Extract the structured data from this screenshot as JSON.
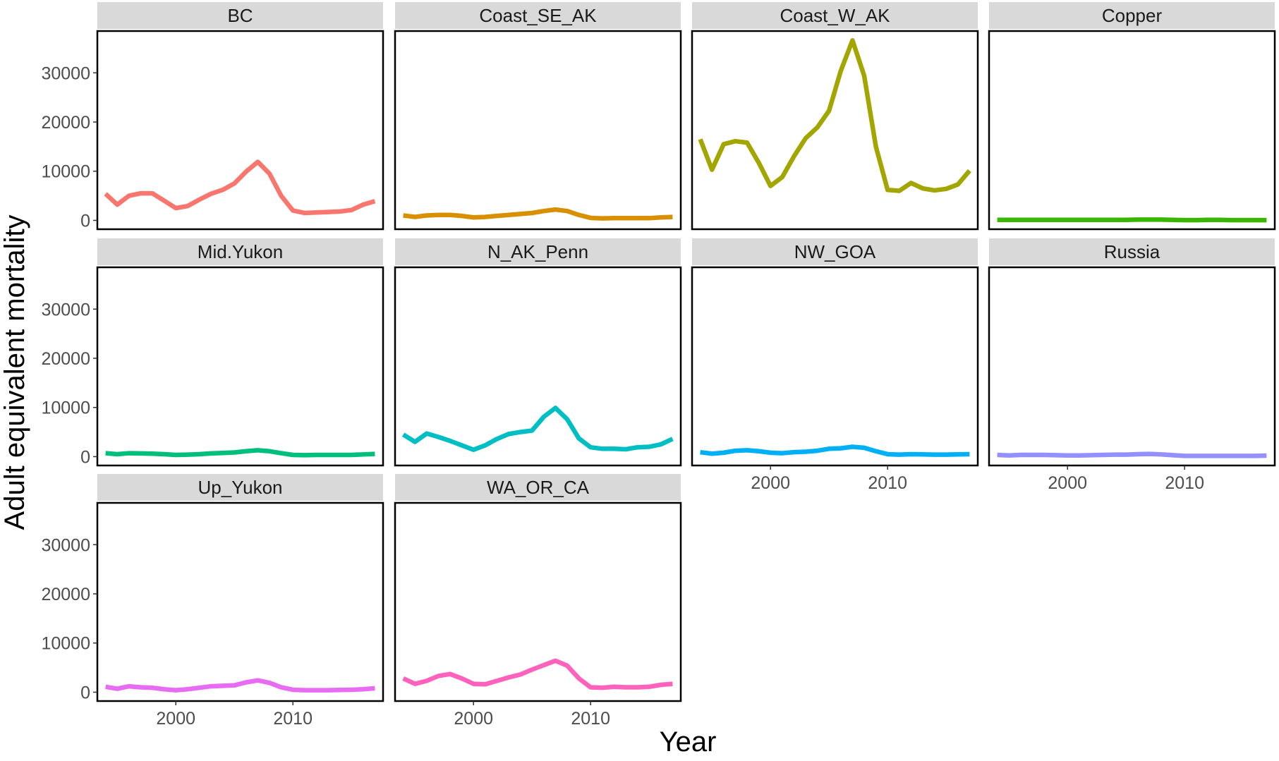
{
  "chart_data": {
    "type": "line",
    "xlabel": "Year",
    "ylabel": "Adult equivalent mortality",
    "xlim": [
      1993.3,
      2017.7
    ],
    "ylim": [
      -1800,
      38500
    ],
    "x_ticks": [
      2000,
      2010
    ],
    "y_ticks": [
      0,
      10000,
      20000,
      30000
    ],
    "x_tick_labels": [
      "2000",
      "2010"
    ],
    "y_tick_labels": [
      "0",
      "10000",
      "20000",
      "30000"
    ],
    "facet_layout": {
      "columns": 4,
      "rows": 3
    },
    "grid": false,
    "legend": "none",
    "x": [
      1994,
      1995,
      1996,
      1997,
      1998,
      1999,
      2000,
      2001,
      2002,
      2003,
      2004,
      2005,
      2006,
      2007,
      2008,
      2009,
      2010,
      2011,
      2012,
      2013,
      2014,
      2015,
      2016,
      2017
    ],
    "panels": [
      {
        "label": "BC",
        "color": "#F8766D",
        "values": [
          5400,
          3200,
          5000,
          5500,
          5500,
          4000,
          2500,
          2900,
          4200,
          5400,
          6200,
          7500,
          9900,
          11900,
          9500,
          5000,
          2000,
          1500,
          1600,
          1700,
          1800,
          2100,
          3200,
          3900
        ]
      },
      {
        "label": "Coast_SE_AK",
        "color": "#D89000",
        "values": [
          1000,
          700,
          1000,
          1100,
          1100,
          900,
          600,
          700,
          900,
          1100,
          1300,
          1500,
          1900,
          2200,
          1900,
          1100,
          500,
          400,
          450,
          450,
          450,
          450,
          600,
          700
        ]
      },
      {
        "label": "Coast_W_AK",
        "color": "#A3A500",
        "values": [
          16500,
          10300,
          15500,
          16100,
          15800,
          11700,
          7000,
          8800,
          13000,
          16700,
          18900,
          22300,
          30400,
          36600,
          29400,
          15000,
          6200,
          6000,
          7600,
          6500,
          6100,
          6400,
          7300,
          10100
        ]
      },
      {
        "label": "Copper",
        "color": "#39B600",
        "values": [
          100,
          100,
          100,
          100,
          100,
          100,
          100,
          100,
          100,
          100,
          100,
          100,
          150,
          150,
          150,
          100,
          50,
          50,
          100,
          100,
          50,
          50,
          50,
          50
        ]
      },
      {
        "label": "Mid.Yukon",
        "color": "#00BF7D",
        "values": [
          700,
          500,
          700,
          650,
          600,
          500,
          350,
          400,
          500,
          650,
          750,
          850,
          1100,
          1300,
          1100,
          700,
          350,
          300,
          350,
          350,
          350,
          350,
          450,
          550
        ]
      },
      {
        "label": "N_AK_Penn",
        "color": "#00BFC4",
        "values": [
          4500,
          3000,
          4700,
          4000,
          3200,
          2300,
          1400,
          2300,
          3600,
          4600,
          5000,
          5300,
          8100,
          9900,
          7600,
          3700,
          1900,
          1600,
          1600,
          1500,
          1900,
          2000,
          2500,
          3600
        ]
      },
      {
        "label": "NW_GOA",
        "color": "#00B0F6",
        "values": [
          900,
          600,
          800,
          1200,
          1300,
          1100,
          800,
          700,
          900,
          1000,
          1200,
          1600,
          1700,
          2000,
          1800,
          1100,
          500,
          400,
          500,
          450,
          400,
          400,
          450,
          500
        ]
      },
      {
        "label": "Russia",
        "color": "#9590FF",
        "values": [
          350,
          250,
          350,
          350,
          350,
          300,
          250,
          250,
          300,
          350,
          400,
          400,
          500,
          550,
          450,
          300,
          150,
          150,
          150,
          150,
          150,
          150,
          150,
          200
        ]
      },
      {
        "label": "Up_Yukon",
        "color": "#E76BF3",
        "values": [
          1100,
          700,
          1200,
          1000,
          900,
          600,
          400,
          600,
          900,
          1200,
          1300,
          1400,
          2000,
          2400,
          1900,
          1000,
          500,
          400,
          400,
          400,
          450,
          500,
          600,
          800
        ]
      },
      {
        "label": "WA_OR_CA",
        "color": "#FF62BC",
        "values": [
          2800,
          1700,
          2300,
          3300,
          3700,
          2800,
          1700,
          1600,
          2300,
          3000,
          3600,
          4600,
          5500,
          6400,
          5400,
          2800,
          1000,
          900,
          1100,
          1000,
          1000,
          1100,
          1500,
          1700
        ]
      }
    ]
  }
}
